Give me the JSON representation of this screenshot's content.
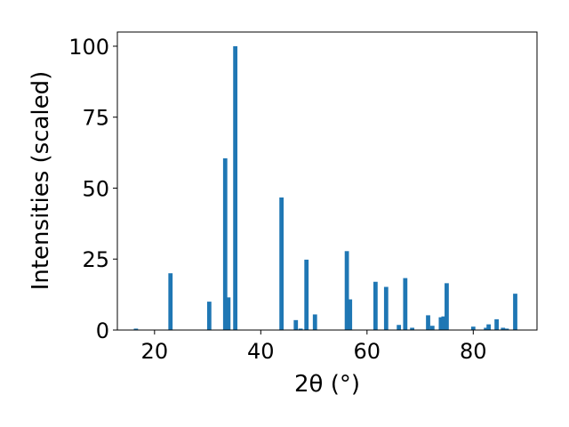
{
  "chart_data": {
    "type": "bar",
    "title": "",
    "xlabel": "2θ (°)",
    "ylabel": "Intensities (scaled)",
    "xlim": [
      13,
      92
    ],
    "ylim": [
      0,
      105
    ],
    "xticks": [
      20,
      40,
      60,
      80
    ],
    "yticks": [
      0,
      25,
      50,
      75,
      100
    ],
    "grid": false,
    "bar_color": "#1f77b4",
    "bar_width": 0.8,
    "peaks": [
      {
        "x": 16.5,
        "y": 0.5
      },
      {
        "x": 23.0,
        "y": 20.0
      },
      {
        "x": 30.3,
        "y": 10.0
      },
      {
        "x": 33.3,
        "y": 60.5
      },
      {
        "x": 33.9,
        "y": 11.5
      },
      {
        "x": 35.2,
        "y": 100.0
      },
      {
        "x": 43.9,
        "y": 46.7
      },
      {
        "x": 46.6,
        "y": 3.5
      },
      {
        "x": 47.5,
        "y": 0.5
      },
      {
        "x": 48.6,
        "y": 24.8
      },
      {
        "x": 50.2,
        "y": 5.5
      },
      {
        "x": 56.2,
        "y": 27.8
      },
      {
        "x": 56.8,
        "y": 10.8
      },
      {
        "x": 61.6,
        "y": 17.0
      },
      {
        "x": 63.6,
        "y": 15.2
      },
      {
        "x": 66.0,
        "y": 1.8
      },
      {
        "x": 67.2,
        "y": 18.3
      },
      {
        "x": 68.5,
        "y": 0.8
      },
      {
        "x": 71.5,
        "y": 5.2
      },
      {
        "x": 72.3,
        "y": 1.5
      },
      {
        "x": 73.9,
        "y": 4.5
      },
      {
        "x": 74.4,
        "y": 4.8
      },
      {
        "x": 75.0,
        "y": 16.5
      },
      {
        "x": 80.0,
        "y": 1.2
      },
      {
        "x": 82.4,
        "y": 0.8
      },
      {
        "x": 82.9,
        "y": 2.0
      },
      {
        "x": 84.4,
        "y": 3.8
      },
      {
        "x": 85.6,
        "y": 0.8
      },
      {
        "x": 86.3,
        "y": 0.5
      },
      {
        "x": 87.9,
        "y": 12.8
      }
    ]
  }
}
